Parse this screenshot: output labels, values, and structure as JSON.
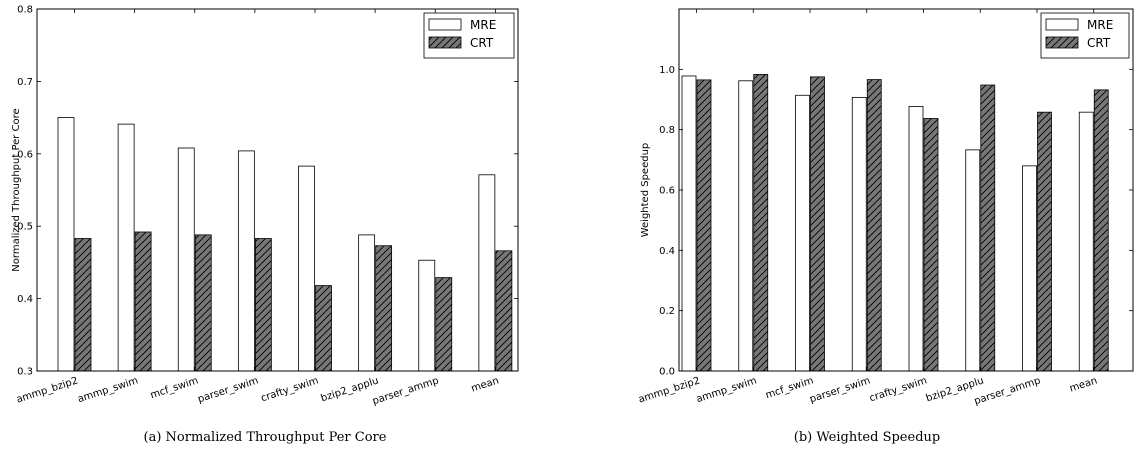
{
  "colors": {
    "mre_fill": "#ffffff",
    "crt_fill": "#777777",
    "hatch": "#000000",
    "edge": "#000000"
  },
  "chart_data": [
    {
      "type": "bar",
      "caption": "(a) Normalized Throughput Per Core",
      "ylabel": "Normalized Throughput Per Core",
      "xlabel": "",
      "ylim": [
        0.3,
        0.8
      ],
      "yticks": [
        "0.3",
        "0.4",
        "0.5",
        "0.6",
        "0.7",
        "0.8"
      ],
      "categories": [
        "ammp_bzip2",
        "ammp_swim",
        "mcf_swim",
        "parser_swim",
        "crafty_swim",
        "bzip2_applu",
        "parser_ammp",
        "mean"
      ],
      "series": [
        {
          "name": "MRE",
          "values": [
            0.65,
            0.641,
            0.608,
            0.604,
            0.583,
            0.488,
            0.453,
            0.571
          ]
        },
        {
          "name": "CRT",
          "values": [
            0.483,
            0.492,
            0.488,
            0.483,
            0.418,
            0.473,
            0.429,
            0.466
          ]
        }
      ],
      "legend": "top-right",
      "grid": false
    },
    {
      "type": "bar",
      "caption": "(b) Weighted Speedup",
      "ylabel": "Weighted Speedup",
      "xlabel": "",
      "ylim": [
        0.0,
        1.2
      ],
      "yticks": [
        "0.0",
        "0.2",
        "0.4",
        "0.6",
        "0.8",
        "1.0"
      ],
      "categories": [
        "ammp_bzip2",
        "ammp_swim",
        "mcf_swim",
        "parser_swim",
        "crafty_swim",
        "bzip2_applu",
        "parser_ammp",
        "mean"
      ],
      "series": [
        {
          "name": "MRE",
          "values": [
            0.978,
            0.962,
            0.914,
            0.907,
            0.877,
            0.733,
            0.68,
            0.858
          ]
        },
        {
          "name": "CRT",
          "values": [
            0.965,
            0.983,
            0.975,
            0.966,
            0.837,
            0.948,
            0.858,
            0.932
          ]
        }
      ],
      "legend": "top-right",
      "grid": false
    }
  ]
}
